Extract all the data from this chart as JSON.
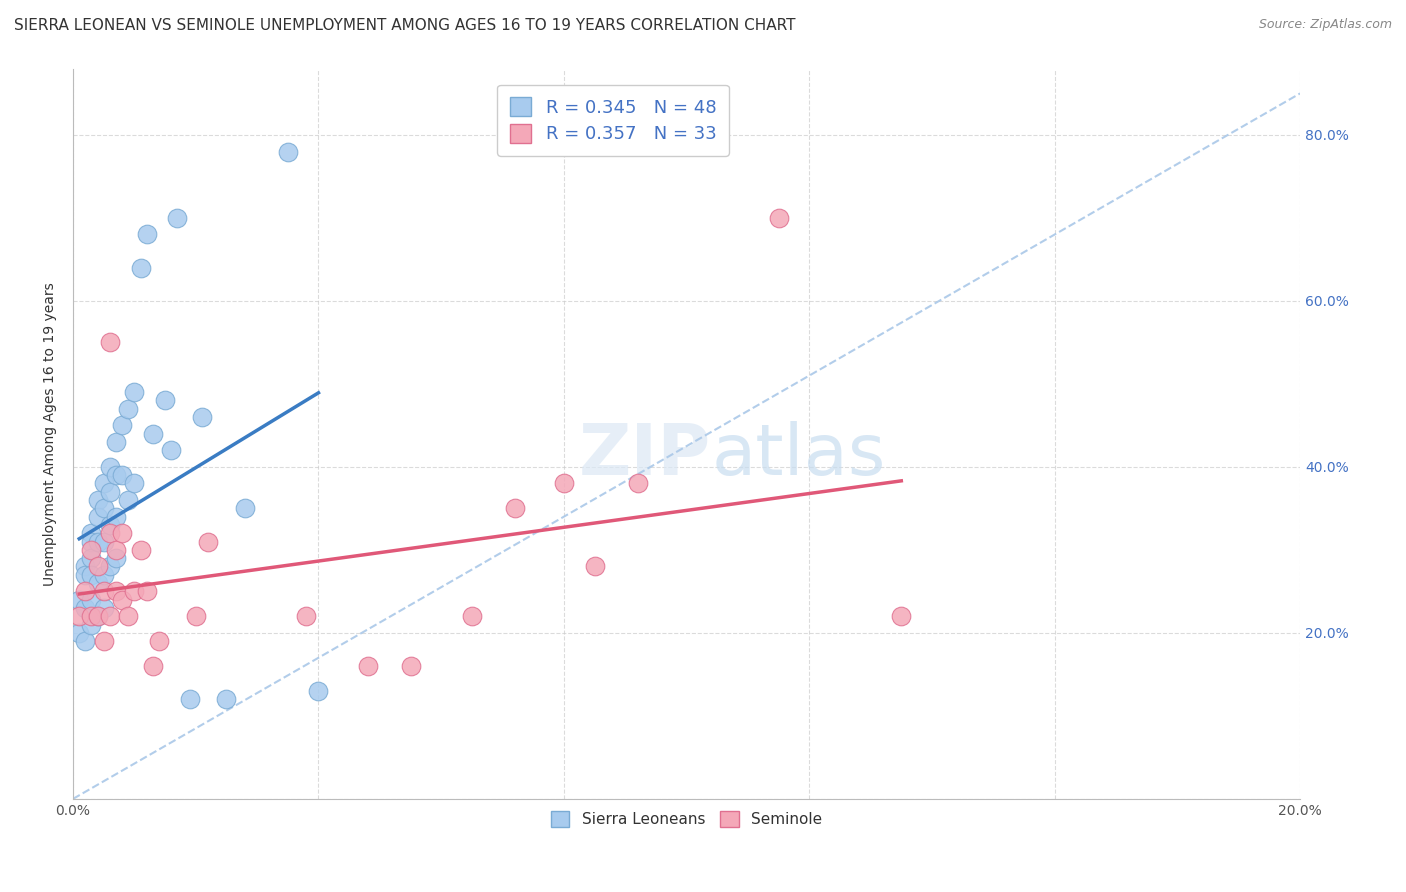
{
  "title": "SIERRA LEONEAN VS SEMINOLE UNEMPLOYMENT AMONG AGES 16 TO 19 YEARS CORRELATION CHART",
  "source": "Source: ZipAtlas.com",
  "ylabel": "Unemployment Among Ages 16 to 19 years",
  "xlim": [
    0.0,
    0.2
  ],
  "ylim": [
    0.0,
    0.88
  ],
  "xticks": [
    0.0,
    0.04,
    0.08,
    0.12,
    0.16,
    0.2
  ],
  "yticks": [
    0.0,
    0.2,
    0.4,
    0.6,
    0.8
  ],
  "xticklabels": [
    "0.0%",
    "",
    "",
    "",
    "",
    "20.0%"
  ],
  "yticklabels": [
    "",
    "20.0%",
    "40.0%",
    "60.0%",
    "80.0%"
  ],
  "R_blue": 0.345,
  "N_blue": 48,
  "R_pink": 0.357,
  "N_pink": 33,
  "blue_scatter_color": "#A8CBEE",
  "blue_scatter_edge": "#7aabd4",
  "pink_scatter_color": "#F4A8B8",
  "pink_scatter_edge": "#e07090",
  "blue_line_color": "#3A7CC3",
  "pink_line_color": "#E05878",
  "ref_line_color": "#aac8e8",
  "legend_blue_label": "Sierra Leoneans",
  "legend_pink_label": "Seminole",
  "background_color": "#ffffff",
  "grid_color": "#cccccc",
  "title_color": "#333333",
  "axis_color": "#4472C4",
  "title_fontsize": 11,
  "axis_label_fontsize": 10,
  "tick_label_fontsize": 10,
  "blue_x": [
    0.001,
    0.001,
    0.002,
    0.002,
    0.002,
    0.002,
    0.003,
    0.003,
    0.003,
    0.003,
    0.003,
    0.003,
    0.004,
    0.004,
    0.004,
    0.004,
    0.004,
    0.005,
    0.005,
    0.005,
    0.005,
    0.005,
    0.006,
    0.006,
    0.006,
    0.006,
    0.007,
    0.007,
    0.007,
    0.007,
    0.008,
    0.008,
    0.009,
    0.009,
    0.01,
    0.01,
    0.011,
    0.012,
    0.013,
    0.015,
    0.016,
    0.017,
    0.019,
    0.021,
    0.025,
    0.028,
    0.035,
    0.04
  ],
  "blue_y": [
    0.24,
    0.2,
    0.28,
    0.27,
    0.23,
    0.19,
    0.32,
    0.31,
    0.29,
    0.27,
    0.24,
    0.21,
    0.36,
    0.34,
    0.31,
    0.26,
    0.22,
    0.38,
    0.35,
    0.31,
    0.27,
    0.23,
    0.4,
    0.37,
    0.33,
    0.28,
    0.43,
    0.39,
    0.34,
    0.29,
    0.45,
    0.39,
    0.47,
    0.36,
    0.49,
    0.38,
    0.64,
    0.68,
    0.44,
    0.48,
    0.42,
    0.7,
    0.12,
    0.46,
    0.12,
    0.35,
    0.78,
    0.13
  ],
  "pink_x": [
    0.001,
    0.002,
    0.003,
    0.003,
    0.004,
    0.004,
    0.005,
    0.005,
    0.006,
    0.006,
    0.006,
    0.007,
    0.007,
    0.008,
    0.008,
    0.009,
    0.01,
    0.011,
    0.012,
    0.013,
    0.014,
    0.02,
    0.022,
    0.038,
    0.048,
    0.055,
    0.065,
    0.072,
    0.08,
    0.085,
    0.092,
    0.115,
    0.135
  ],
  "pink_y": [
    0.22,
    0.25,
    0.3,
    0.22,
    0.28,
    0.22,
    0.25,
    0.19,
    0.55,
    0.32,
    0.22,
    0.3,
    0.25,
    0.32,
    0.24,
    0.22,
    0.25,
    0.3,
    0.25,
    0.16,
    0.19,
    0.22,
    0.31,
    0.22,
    0.16,
    0.16,
    0.22,
    0.35,
    0.38,
    0.28,
    0.38,
    0.7,
    0.22
  ]
}
